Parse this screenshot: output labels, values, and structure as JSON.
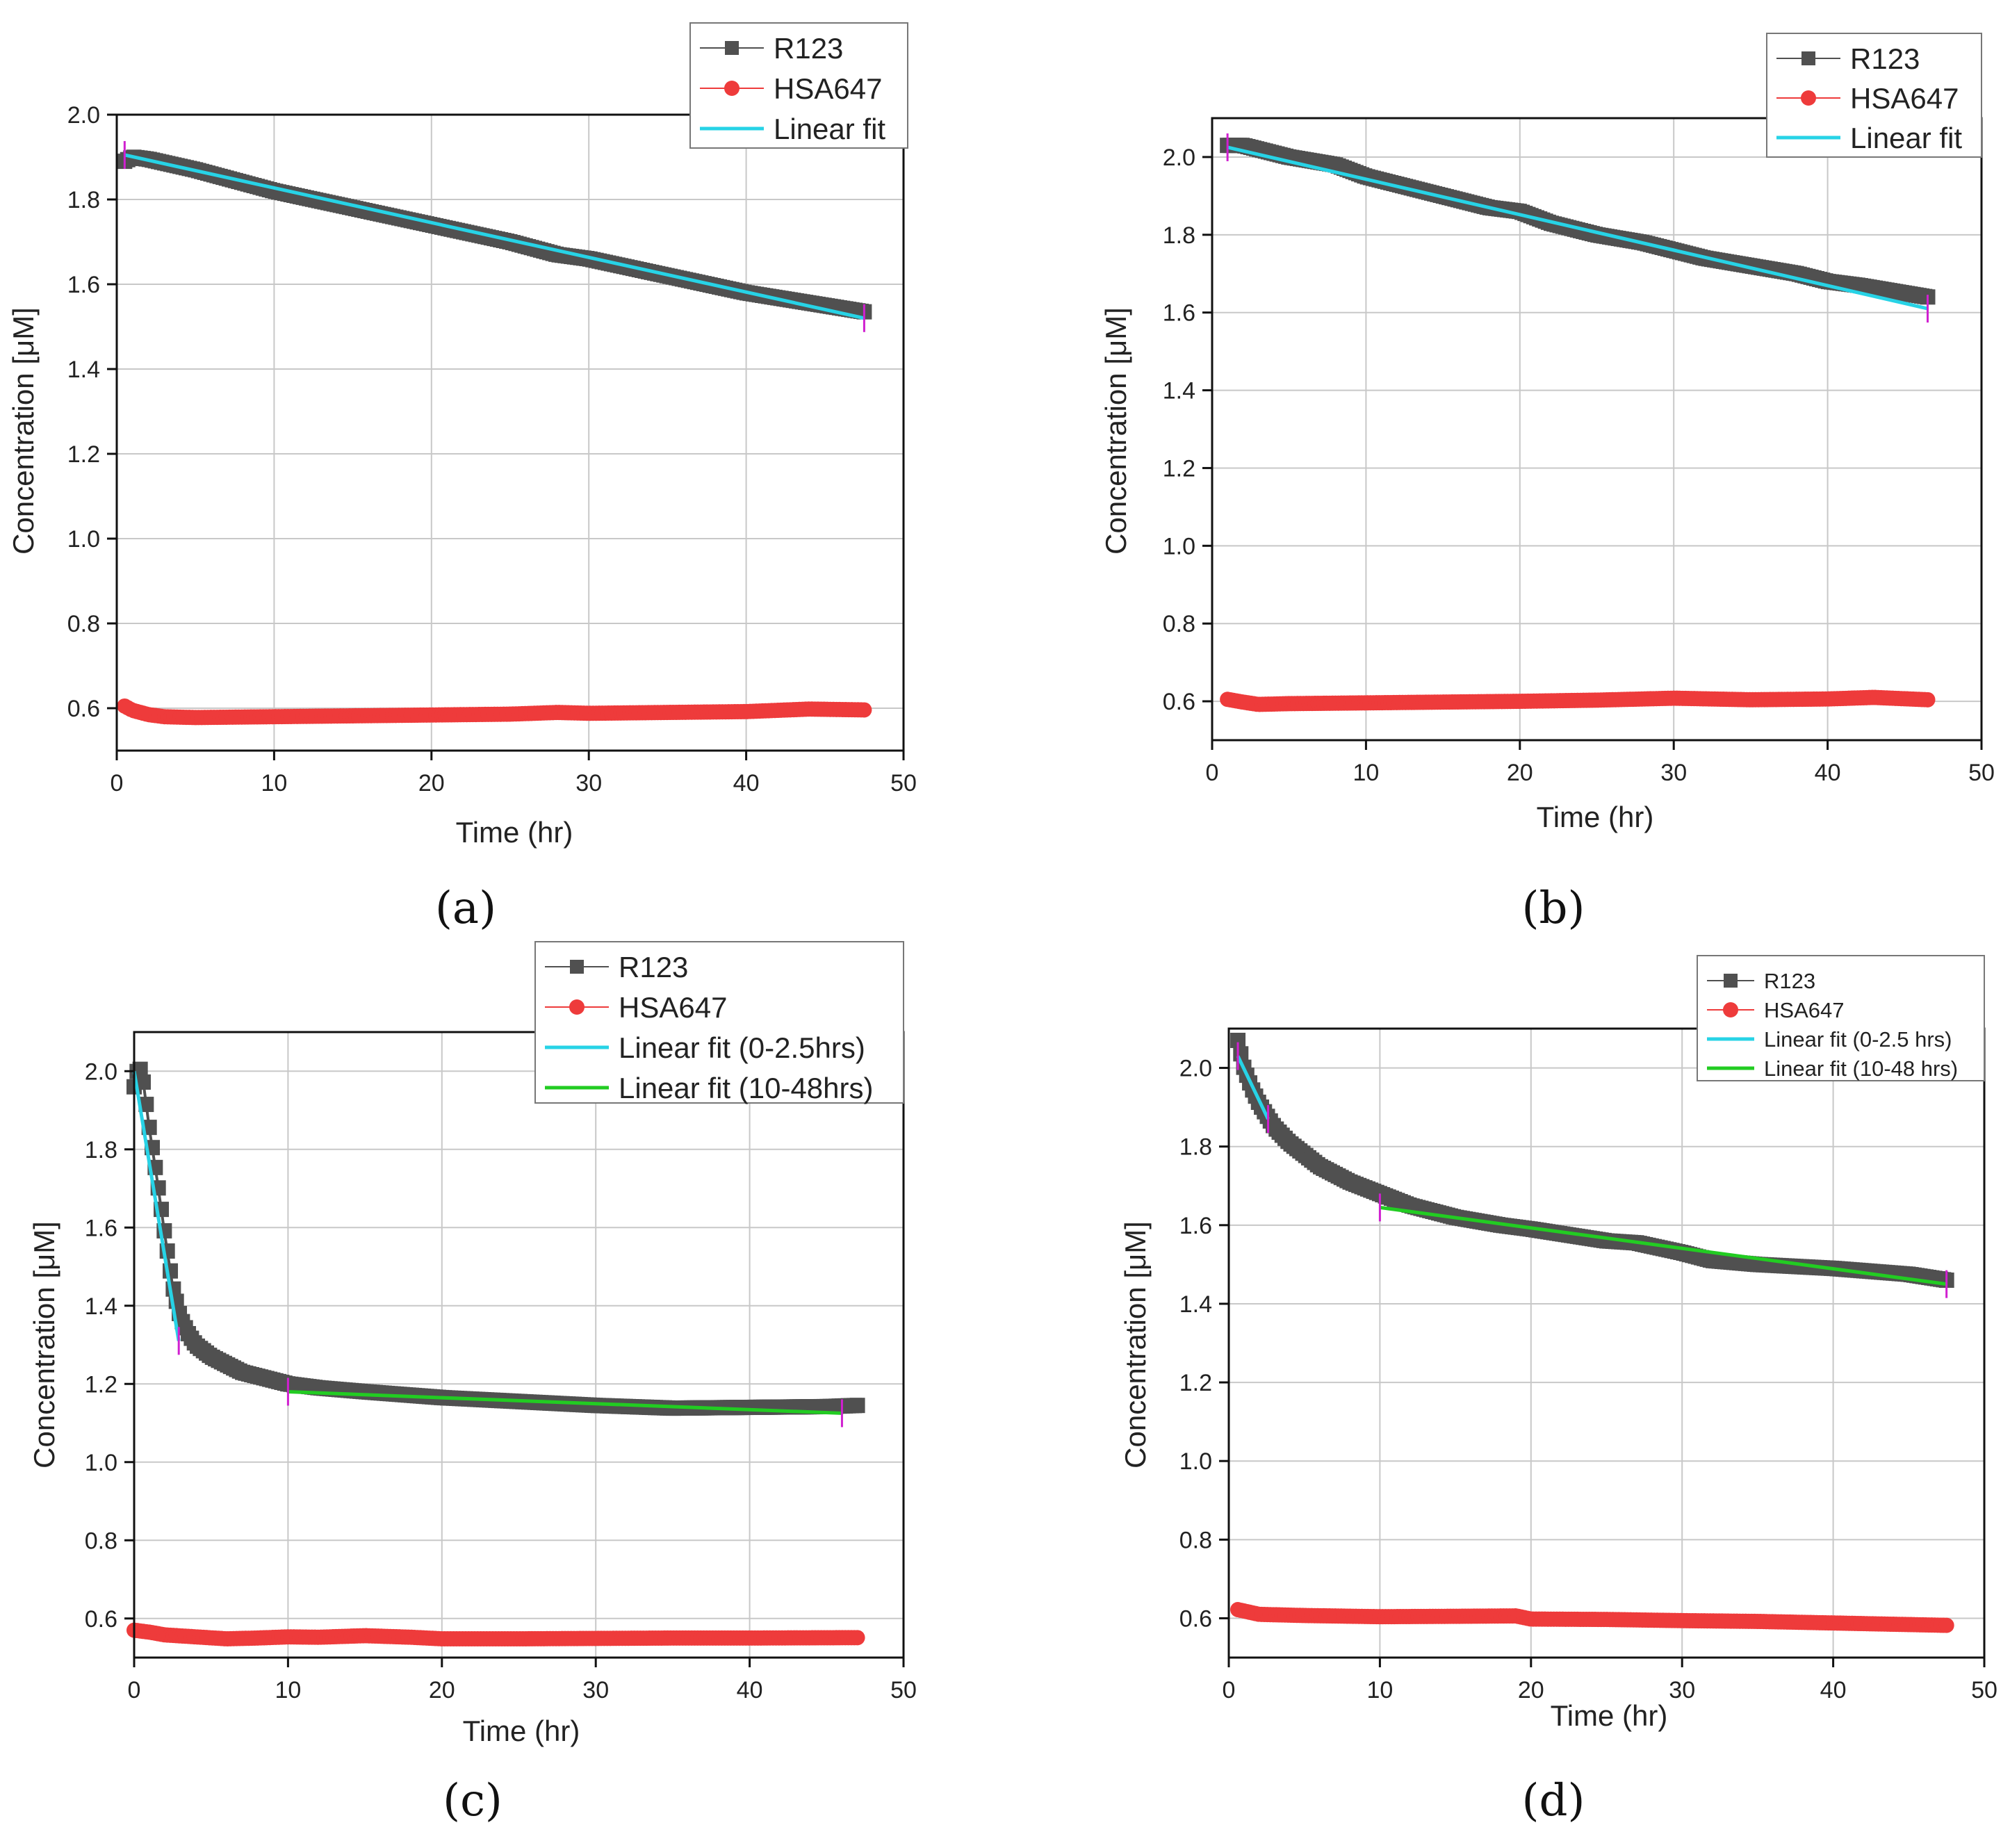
{
  "chart_data": [
    {
      "panel": "(a)",
      "type": "scatter",
      "xlabel": "Time (hr)",
      "ylabel": "Concentration [μM]",
      "xlim": [
        0,
        50
      ],
      "ylim": [
        0.5,
        2.0
      ],
      "xticks": [
        "0",
        "10",
        "20",
        "30",
        "40",
        "50"
      ],
      "yticks": [
        "0.6",
        "0.8",
        "1.0",
        "1.2",
        "1.4",
        "1.6",
        "1.8",
        "2.0"
      ],
      "grid": true,
      "legend_position": "top-right",
      "legend": [
        "R123",
        "HSA647",
        "Linear fit"
      ],
      "series": [
        {
          "name": "R123",
          "color": "#505050",
          "x": [
            0.5,
            1,
            2,
            5,
            10,
            15,
            20,
            25,
            28,
            30,
            35,
            40,
            45,
            47.5
          ],
          "y": [
            1.89,
            1.9,
            1.895,
            1.87,
            1.82,
            1.78,
            1.74,
            1.7,
            1.67,
            1.66,
            1.62,
            1.58,
            1.55,
            1.535
          ]
        },
        {
          "name": "HSA647",
          "color": "#ee3b3b",
          "x": [
            0.5,
            1,
            2,
            3,
            5,
            10,
            15,
            20,
            25,
            28,
            30,
            35,
            40,
            44,
            47.5
          ],
          "y": [
            0.605,
            0.595,
            0.585,
            0.58,
            0.578,
            0.58,
            0.582,
            0.584,
            0.586,
            0.59,
            0.588,
            0.59,
            0.592,
            0.598,
            0.596
          ]
        }
      ],
      "fits": [
        {
          "name": "Linear fit",
          "color": "#27d3e6",
          "x": [
            0.5,
            47.5
          ],
          "y": [
            1.905,
            1.52
          ]
        }
      ]
    },
    {
      "panel": "(b)",
      "type": "scatter",
      "xlabel": "Time (hr)",
      "ylabel": "Concentration [μM]",
      "xlim": [
        0,
        50
      ],
      "ylim": [
        0.5,
        2.1
      ],
      "xticks": [
        "0",
        "10",
        "20",
        "30",
        "40",
        "50"
      ],
      "yticks": [
        "0.6",
        "0.8",
        "1.0",
        "1.2",
        "1.4",
        "1.6",
        "1.8",
        "2.0"
      ],
      "grid": true,
      "legend_position": "top-right",
      "legend": [
        "R123",
        "HSA647",
        "Linear fit"
      ],
      "series": [
        {
          "name": "R123",
          "color": "#505050",
          "x": [
            1,
            2,
            5,
            8,
            10,
            12,
            15,
            18,
            20,
            22,
            25,
            28,
            30,
            32,
            35,
            38,
            40,
            42,
            45,
            46.5
          ],
          "y": [
            2.03,
            2.03,
            2.0,
            1.98,
            1.95,
            1.93,
            1.9,
            1.87,
            1.86,
            1.83,
            1.8,
            1.78,
            1.76,
            1.74,
            1.72,
            1.7,
            1.68,
            1.67,
            1.65,
            1.64
          ]
        },
        {
          "name": "HSA647",
          "color": "#ee3b3b",
          "x": [
            1,
            2,
            3,
            5,
            10,
            15,
            20,
            25,
            30,
            35,
            40,
            43,
            46.5
          ],
          "y": [
            0.605,
            0.598,
            0.592,
            0.594,
            0.596,
            0.598,
            0.6,
            0.603,
            0.608,
            0.604,
            0.606,
            0.61,
            0.604
          ]
        }
      ],
      "fits": [
        {
          "name": "Linear fit",
          "color": "#27d3e6",
          "x": [
            1,
            46.5
          ],
          "y": [
            2.025,
            1.61
          ]
        }
      ]
    },
    {
      "panel": "(c)",
      "type": "scatter",
      "xlabel": "Time (hr)",
      "ylabel": "Concentration [μM]",
      "xlim": [
        0,
        50
      ],
      "ylim": [
        0.5,
        2.1
      ],
      "xticks": [
        "0",
        "10",
        "20",
        "30",
        "40",
        "50"
      ],
      "yticks": [
        "0.6",
        "0.8",
        "1.0",
        "1.2",
        "1.4",
        "1.6",
        "1.8",
        "2.0"
      ],
      "grid": true,
      "legend_position": "top-right",
      "legend": [
        "R123",
        "HSA647",
        "Linear fit (0-2.5hrs)",
        "Linear fit (10-48hrs)"
      ],
      "series": [
        {
          "name": "R123",
          "color": "#505050",
          "x": [
            0,
            0.3,
            0.6,
            1,
            1.5,
            2,
            2.5,
            3,
            3.5,
            4,
            5,
            6,
            7,
            8,
            10,
            12,
            15,
            20,
            25,
            30,
            35,
            40,
            45,
            47
          ],
          "y": [
            1.96,
            2.02,
            1.97,
            1.85,
            1.72,
            1.58,
            1.45,
            1.37,
            1.33,
            1.3,
            1.27,
            1.25,
            1.23,
            1.22,
            1.2,
            1.19,
            1.18,
            1.165,
            1.155,
            1.145,
            1.138,
            1.14,
            1.142,
            1.145
          ]
        },
        {
          "name": "HSA647",
          "color": "#ee3b3b",
          "x": [
            0,
            1,
            2,
            4,
            6,
            8,
            10,
            12,
            15,
            18,
            20,
            25,
            30,
            35,
            40,
            47
          ],
          "y": [
            0.57,
            0.565,
            0.558,
            0.553,
            0.548,
            0.55,
            0.553,
            0.552,
            0.556,
            0.552,
            0.548,
            0.548,
            0.549,
            0.55,
            0.55,
            0.551
          ]
        }
      ],
      "fits": [
        {
          "name": "Linear fit (0-2.5hrs)",
          "color": "#27d3e6",
          "x": [
            0,
            2.9
          ],
          "y": [
            2.0,
            1.31
          ]
        },
        {
          "name": "Linear fit (10-48hrs)",
          "color": "#22cc22",
          "x": [
            10,
            46
          ],
          "y": [
            1.18,
            1.125
          ]
        }
      ]
    },
    {
      "panel": "(d)",
      "type": "scatter",
      "xlabel": "Time (hr)",
      "ylabel": "Concentration [μM]",
      "xlim": [
        0,
        50
      ],
      "ylim": [
        0.5,
        2.1
      ],
      "xticks": [
        "0",
        "10",
        "20",
        "30",
        "40",
        "50"
      ],
      "yticks": [
        "0.6",
        "0.8",
        "1.0",
        "1.2",
        "1.4",
        "1.6",
        "1.8",
        "2.0"
      ],
      "grid": true,
      "legend_position": "top-right",
      "legend": [
        "R123",
        "HSA647",
        "Linear fit (0-2.5 hrs)",
        "Linear fit (10-48 hrs)"
      ],
      "series": [
        {
          "name": "R123",
          "color": "#505050",
          "x": [
            0.6,
            1,
            1.5,
            2,
            2.5,
            3,
            4,
            5,
            6,
            8,
            10,
            12,
            15,
            18,
            20,
            25,
            27,
            30,
            32,
            35,
            40,
            45,
            47.5
          ],
          "y": [
            2.07,
            2.0,
            1.95,
            1.91,
            1.88,
            1.85,
            1.81,
            1.78,
            1.75,
            1.71,
            1.68,
            1.65,
            1.62,
            1.6,
            1.59,
            1.56,
            1.555,
            1.53,
            1.51,
            1.5,
            1.49,
            1.475,
            1.46
          ]
        },
        {
          "name": "HSA647",
          "color": "#ee3b3b",
          "x": [
            0.6,
            2,
            5,
            10,
            15,
            19,
            20,
            25,
            30,
            35,
            40,
            45,
            47.5
          ],
          "y": [
            0.622,
            0.61,
            0.607,
            0.604,
            0.605,
            0.606,
            0.598,
            0.597,
            0.594,
            0.592,
            0.588,
            0.584,
            0.582
          ]
        }
      ],
      "fits": [
        {
          "name": "Linear fit (0-2.5 hrs)",
          "color": "#27d3e6",
          "x": [
            0.6,
            2.6
          ],
          "y": [
            2.03,
            1.87
          ]
        },
        {
          "name": "Linear fit (10-48 hrs)",
          "color": "#22cc22",
          "x": [
            10,
            47.5
          ],
          "y": [
            1.645,
            1.45
          ]
        }
      ]
    }
  ]
}
